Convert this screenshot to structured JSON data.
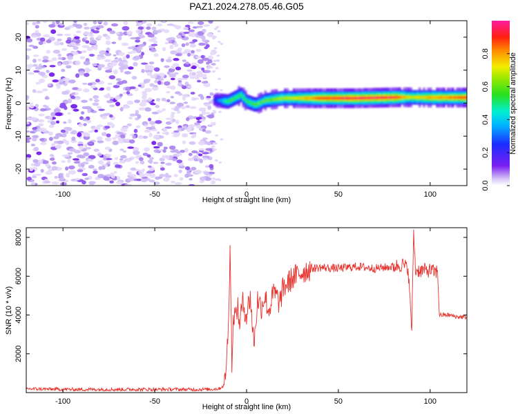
{
  "title": "PAZ1.2024.278.05.46.G05",
  "chart_data": [
    {
      "type": "heatmap",
      "xlabel": "Height of straight line (km)",
      "ylabel": "Frequency (Hz)",
      "xlim": [
        -120,
        120
      ],
      "ylim": [
        -25,
        25
      ],
      "x_ticks": [
        -100,
        -50,
        0,
        50,
        100
      ],
      "x_tick_labels": [
        "-100",
        "-50",
        "0",
        "50",
        "100"
      ],
      "y_ticks": [
        -20,
        -10,
        0,
        10,
        20
      ],
      "y_tick_labels": [
        "-20",
        "-10",
        "0",
        "10",
        "20"
      ],
      "grid": false,
      "colorbar": {
        "label": "Normalized spectral amplitude",
        "range": [
          0,
          1
        ],
        "ticks": [
          0.0,
          0.2,
          0.4,
          0.6,
          0.8
        ],
        "tick_labels": [
          "0.0",
          "0.2",
          "0.4",
          "0.6",
          "0.8"
        ],
        "colormap": "rainbow (purple-blue-cyan-green-yellow-orange-red-magenta)"
      },
      "features": {
        "noise_region_x": [
          -120,
          -18
        ],
        "noise_amplitude": "low (0.0-0.1), speckled purple",
        "signal_band_start_x": -18,
        "signal_band_center_hz": [
          [
            -18,
            1.0
          ],
          [
            -10,
            0.5
          ],
          [
            -3,
            2.5
          ],
          [
            0,
            0.5
          ],
          [
            5,
            -0.5
          ],
          [
            10,
            0.8
          ],
          [
            20,
            1.5
          ],
          [
            40,
            1.5
          ],
          [
            60,
            1.5
          ],
          [
            85,
            1.8
          ],
          [
            100,
            1.7
          ],
          [
            120,
            1.7
          ]
        ],
        "signal_band_peak_amplitude": [
          [
            -18,
            0.2
          ],
          [
            -10,
            0.55
          ],
          [
            0,
            0.55
          ],
          [
            10,
            0.6
          ],
          [
            30,
            0.75
          ],
          [
            40,
            0.9
          ],
          [
            60,
            0.95
          ],
          [
            80,
            0.95
          ],
          [
            90,
            0.7
          ],
          [
            100,
            0.8
          ],
          [
            120,
            0.9
          ]
        ]
      }
    },
    {
      "type": "line",
      "xlabel": "Height of straight line (km)",
      "ylabel": "SNR (10 * v/v)",
      "xlim": [
        -120,
        120
      ],
      "ylim": [
        0,
        8500
      ],
      "x_ticks": [
        -100,
        -50,
        0,
        50,
        100
      ],
      "x_tick_labels": [
        "-100",
        "-50",
        "0",
        "50",
        "100"
      ],
      "y_ticks": [
        2000,
        4000,
        6000,
        8000
      ],
      "y_tick_labels": [
        "2000",
        "4000",
        "6000",
        "8000"
      ],
      "grid": false,
      "line_color": "#e8302a",
      "x": [
        -120,
        -110,
        -100,
        -90,
        -80,
        -70,
        -60,
        -50,
        -40,
        -30,
        -20,
        -15,
        -12,
        -10,
        -9,
        -8,
        -7,
        -6,
        -5,
        -4,
        -2,
        0,
        2,
        4,
        6,
        8,
        10,
        12,
        15,
        18,
        20,
        25,
        30,
        35,
        40,
        50,
        60,
        70,
        80,
        85,
        88,
        90,
        91,
        92,
        95,
        100,
        103,
        104,
        105,
        110,
        115,
        120
      ],
      "y": [
        200,
        180,
        170,
        160,
        170,
        160,
        170,
        160,
        170,
        160,
        170,
        200,
        400,
        3000,
        7600,
        1500,
        4200,
        3800,
        4500,
        3600,
        4600,
        4000,
        5000,
        2400,
        4800,
        4400,
        5000,
        4200,
        5200,
        4600,
        5400,
        5900,
        6200,
        6400,
        6450,
        6400,
        6500,
        6400,
        6500,
        6600,
        6400,
        3200,
        8400,
        6300,
        6300,
        6300,
        6200,
        6300,
        4000,
        4000,
        3900,
        3900
      ]
    }
  ]
}
